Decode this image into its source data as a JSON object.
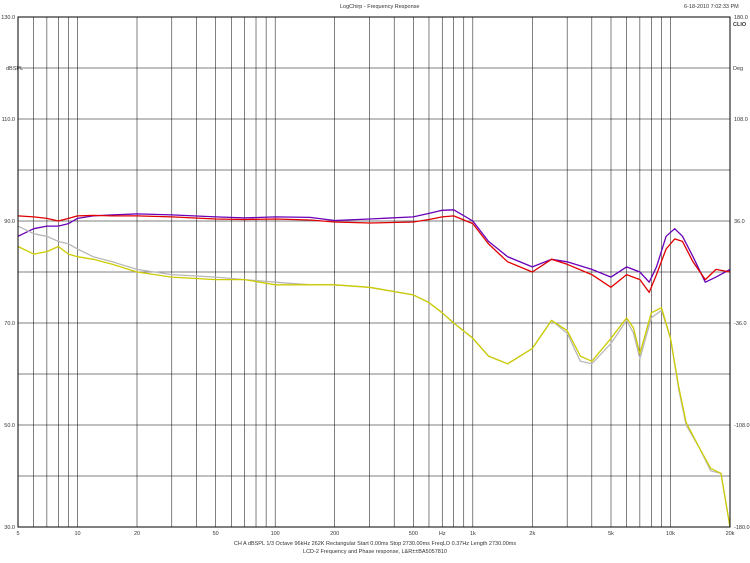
{
  "header": {
    "title": "LogChirp - Frequency Response",
    "timestamp": "6-18-2010 7:02:33 PM"
  },
  "footer": {
    "settings": "CH A   dBSPL  1/3 Octave   96kHz   262K   Rectangular   Start 0.00ms   Stop 2730.00ms   FreqLO 0.37Hz   Length 2730.00ms",
    "caption": "LCD-2 Frequency and Phase response, L&R±±BA5057810"
  },
  "colors": {
    "purple": "#6a00b8",
    "red": "#e00000",
    "yellow": "#cccc00",
    "gray": "#b8b8b8",
    "grid": "#000000"
  },
  "chart_data": {
    "type": "line",
    "title": "LogChirp - Frequency Response",
    "xscale": "log",
    "xlim": [
      5,
      20000
    ],
    "ylim": [
      30,
      130
    ],
    "ylim_right": [
      -180,
      180
    ],
    "grid": true,
    "x_ticks": [
      {
        "v": 5,
        "label": "5"
      },
      {
        "v": 10,
        "label": "10"
      },
      {
        "v": 20,
        "label": "20"
      },
      {
        "v": 50,
        "label": "50"
      },
      {
        "v": 100,
        "label": "100"
      },
      {
        "v": 200,
        "label": "200"
      },
      {
        "v": 500,
        "label": "500"
      },
      {
        "v": 700,
        "label": "Hz"
      },
      {
        "v": 1000,
        "label": "1k"
      },
      {
        "v": 2000,
        "label": "2k"
      },
      {
        "v": 5000,
        "label": "5k"
      },
      {
        "v": 10000,
        "label": "10k"
      },
      {
        "v": 20000,
        "label": "20k"
      }
    ],
    "y_ticks_left": [
      {
        "v": 130,
        "label": "130.0"
      },
      {
        "v": 110,
        "label": "110.0"
      },
      {
        "v": 90,
        "label": "90.0"
      },
      {
        "v": 70,
        "label": "70.0"
      },
      {
        "v": 50,
        "label": "50.0"
      },
      {
        "v": 30,
        "label": "30.0"
      }
    ],
    "y_unit_left": "dBSPL",
    "y_ticks_right": [
      {
        "v": 180,
        "label": "180.0"
      },
      {
        "v": 108,
        "label": "108.0"
      },
      {
        "v": 36,
        "label": "36.0"
      },
      {
        "v": -36,
        "label": "-36.0"
      },
      {
        "v": -108,
        "label": "-108.0"
      },
      {
        "v": -180,
        "label": "-180.0"
      }
    ],
    "y_unit_right": "Deg",
    "brand": "CLIO",
    "series": [
      {
        "color": "#6a00b8",
        "x": [
          5,
          6,
          7,
          8,
          9,
          10,
          12,
          15,
          20,
          30,
          50,
          70,
          100,
          150,
          200,
          300,
          500,
          600,
          700,
          800,
          1000,
          1200,
          1500,
          2000,
          2500,
          3000,
          4000,
          5000,
          6000,
          7000,
          7800,
          8500,
          9500,
          10500,
          11500,
          13000,
          15000,
          17000,
          20000
        ],
        "y": [
          87,
          88.5,
          89,
          89,
          89.5,
          90.5,
          91,
          91.2,
          91.4,
          91.2,
          90.8,
          90.6,
          90.8,
          90.7,
          90.1,
          90.4,
          90.8,
          91.5,
          92.1,
          92.2,
          90,
          86,
          83,
          81,
          82.5,
          82,
          80.5,
          79,
          81,
          80,
          78,
          81,
          87,
          88.5,
          87,
          83,
          78,
          79,
          80.5
        ]
      },
      {
        "color": "#e00000",
        "x": [
          5,
          6,
          7,
          8,
          9,
          10,
          12,
          15,
          20,
          30,
          50,
          70,
          100,
          150,
          200,
          300,
          500,
          600,
          700,
          800,
          1000,
          1200,
          1500,
          2000,
          2500,
          3000,
          4000,
          5000,
          6000,
          7000,
          7800,
          8500,
          9500,
          10500,
          11500,
          13000,
          15000,
          17000,
          20000
        ],
        "y": [
          91,
          90.8,
          90.5,
          90,
          90.5,
          91,
          91.1,
          91,
          91,
          90.8,
          90.4,
          90.3,
          90.4,
          90.2,
          89.8,
          89.6,
          89.8,
          90.3,
          90.8,
          91,
          89.5,
          85.5,
          82,
          80,
          82.5,
          81.5,
          79.5,
          77,
          79.5,
          78.5,
          76,
          79.5,
          84.5,
          86.5,
          86,
          82,
          78.5,
          80.5,
          80
        ]
      },
      {
        "color": "#b8b8b8",
        "x": [
          5,
          6,
          7,
          8,
          9,
          10,
          12,
          15,
          20,
          30,
          50,
          70,
          100,
          150,
          200,
          300,
          500,
          600,
          700,
          800,
          1000,
          1200,
          1500,
          2000,
          2500,
          3000,
          3500,
          4000,
          5000,
          6000,
          6500,
          7000,
          8000,
          9000,
          10000,
          11000,
          12000,
          14000,
          16000,
          18000,
          20000
        ],
        "y": [
          89,
          87.5,
          87,
          86,
          85.5,
          84.5,
          83,
          82,
          80.5,
          79.5,
          79,
          78.5,
          78,
          77.5,
          77.5,
          77,
          75.5,
          74,
          72,
          70,
          67,
          63.5,
          62,
          65,
          70.5,
          68,
          62.5,
          62,
          66,
          70.5,
          68,
          63,
          71,
          72.5,
          67,
          57,
          50,
          45.5,
          41,
          40.5,
          30
        ]
      },
      {
        "color": "#cccc00",
        "x": [
          5,
          6,
          7,
          8,
          9,
          10,
          12,
          15,
          20,
          30,
          50,
          70,
          100,
          150,
          200,
          300,
          500,
          600,
          700,
          800,
          1000,
          1200,
          1500,
          2000,
          2500,
          3000,
          3500,
          4000,
          5000,
          6000,
          6500,
          7000,
          8000,
          9000,
          10000,
          11000,
          12000,
          14000,
          16000,
          18000,
          20000
        ],
        "y": [
          85,
          83.5,
          84,
          85,
          83.5,
          83,
          82.5,
          81.5,
          80,
          79,
          78.5,
          78.5,
          77.5,
          77.5,
          77.5,
          77,
          75.5,
          74,
          72,
          70,
          67,
          63.5,
          62,
          65,
          70.5,
          68.5,
          63.5,
          62.5,
          67,
          71,
          69,
          64,
          72,
          73,
          67,
          57.5,
          50.5,
          45.5,
          41.5,
          40.5,
          30
        ]
      }
    ]
  }
}
